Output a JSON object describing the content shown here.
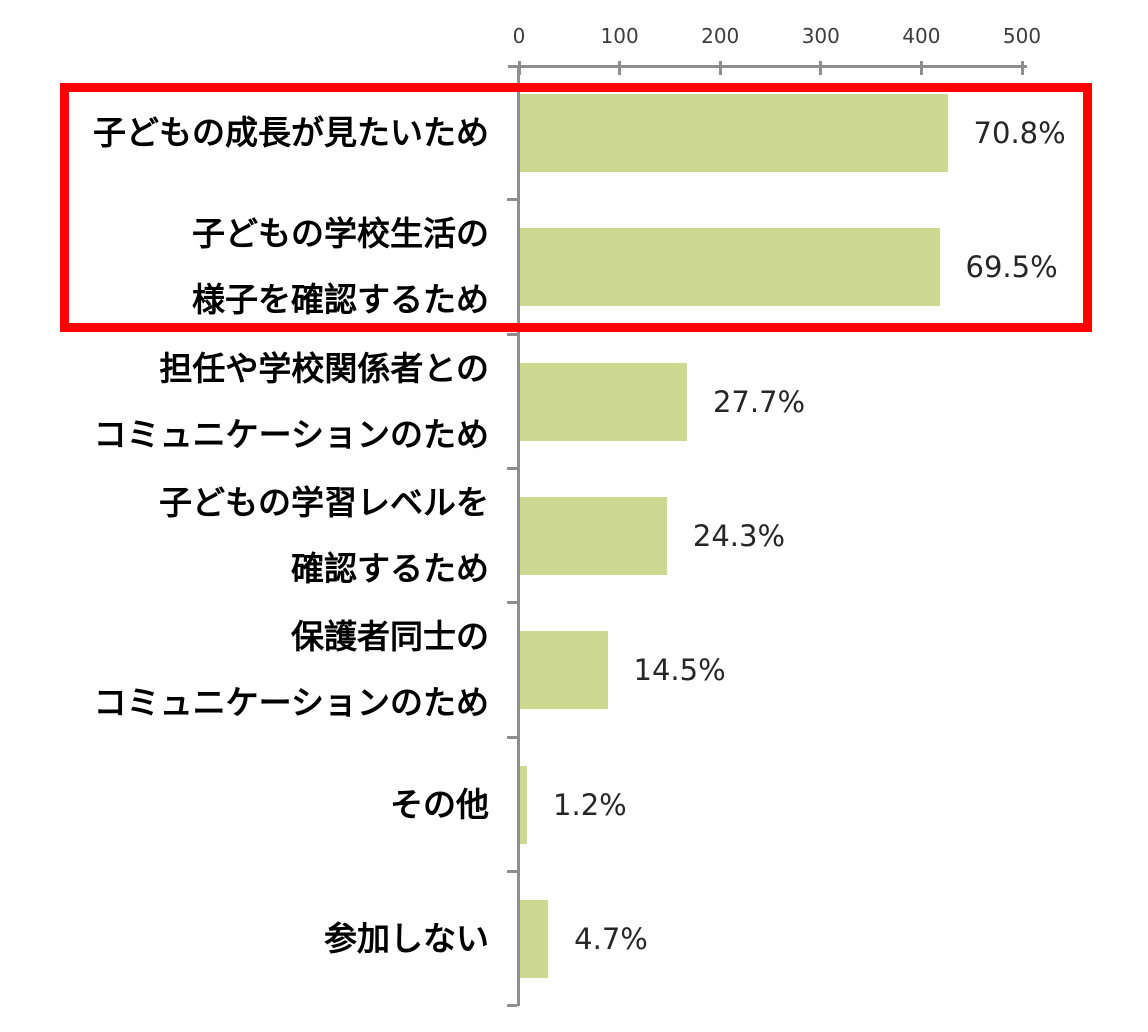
{
  "chart_data": {
    "type": "bar",
    "orientation": "horizontal",
    "title": "",
    "x_axis": {
      "position": "top",
      "min": 0,
      "max": 500,
      "ticks": [
        0,
        100,
        200,
        300,
        400,
        500
      ]
    },
    "bars": [
      {
        "category_lines": [
          "子どもの成長が見たいため"
        ],
        "value": 425,
        "percent": 70.8,
        "label": "70.8%",
        "highlighted": true
      },
      {
        "category_lines": [
          "子どもの学校生活の",
          "様子を確認するため"
        ],
        "value": 417,
        "percent": 69.5,
        "label": "69.5%",
        "highlighted": true
      },
      {
        "category_lines": [
          "担任や学校関係者との",
          "コミュニケーションのため"
        ],
        "value": 166,
        "percent": 27.7,
        "label": "27.7%",
        "highlighted": false
      },
      {
        "category_lines": [
          "子どもの学習レベルを",
          "確認するため"
        ],
        "value": 146,
        "percent": 24.3,
        "label": "24.3%",
        "highlighted": false
      },
      {
        "category_lines": [
          "保護者同士の",
          "コミュニケーションのため"
        ],
        "value": 87,
        "percent": 14.5,
        "label": "14.5%",
        "highlighted": false
      },
      {
        "category_lines": [
          "その他"
        ],
        "value": 7,
        "percent": 1.2,
        "label": "1.2%",
        "highlighted": false
      },
      {
        "category_lines": [
          "参加しない"
        ],
        "value": 28,
        "percent": 4.7,
        "label": "4.7%",
        "highlighted": false
      }
    ],
    "highlight_box": {
      "covers_bars": [
        0,
        1
      ]
    },
    "styles": {
      "bar_color": "#cdd891",
      "axis_color": "#8e8e8e",
      "highlight_color": "#ff0000",
      "category_label_color": "#000000",
      "value_label_color": "#262626",
      "tick_label_color": "#3d3d3d"
    },
    "legend": null,
    "grid": false
  }
}
